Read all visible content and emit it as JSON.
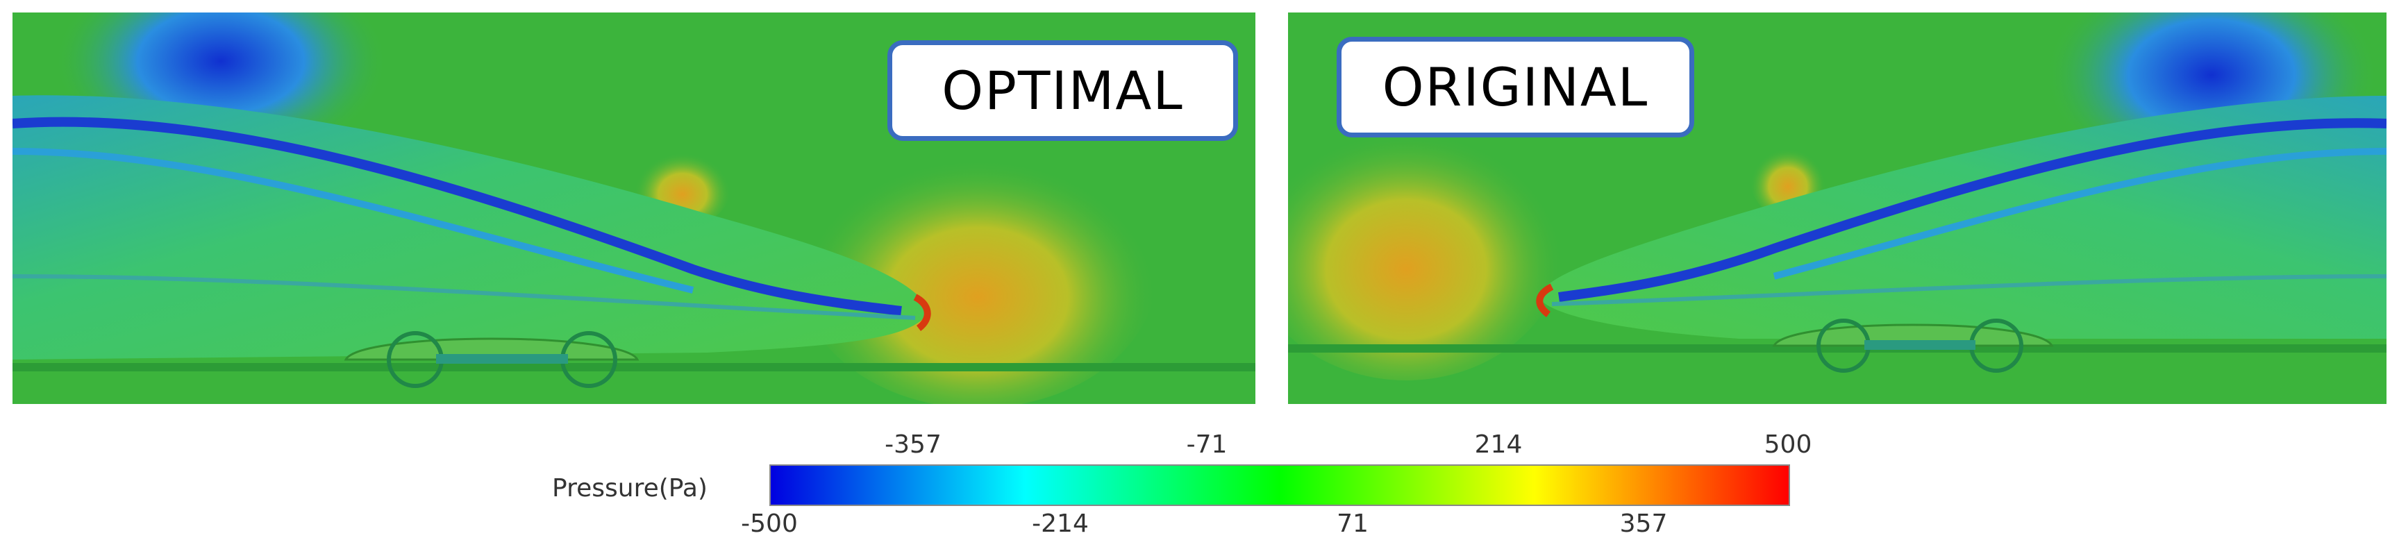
{
  "panels": {
    "left_label": "OPTIMAL",
    "right_label": "ORIGINAL"
  },
  "colorbar": {
    "title": "Pressure(Pa)",
    "top_ticks": [
      "-357",
      "-71",
      "214",
      "500"
    ],
    "bottom_ticks": [
      "-500",
      "-214",
      "71",
      "357"
    ],
    "min": -500,
    "max": 500,
    "colors": [
      "#0000e0",
      "#00ffff",
      "#00ff00",
      "#ffff00",
      "#ff0000"
    ]
  },
  "colors": {
    "field": "#3cb43c",
    "label_border": "#3a6cc0"
  }
}
